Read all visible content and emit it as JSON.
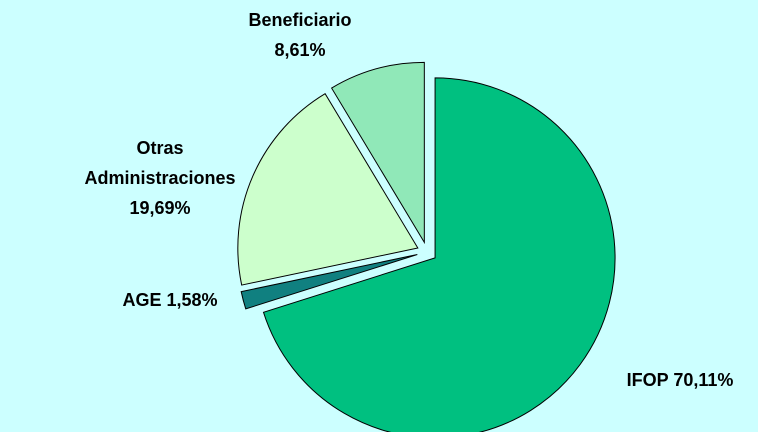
{
  "chart_data": {
    "type": "pie",
    "categories": [
      "IFOP",
      "AGE",
      "Otras Administraciones",
      "Beneficiario"
    ],
    "values": [
      70.11,
      1.58,
      19.69,
      8.61
    ],
    "value_labels": [
      "70,11%",
      "1,58%",
      "19,69%",
      "8,61%"
    ],
    "colors": [
      "#00c080",
      "#108080",
      "#ccffcc",
      "#90e8b8"
    ]
  }
}
